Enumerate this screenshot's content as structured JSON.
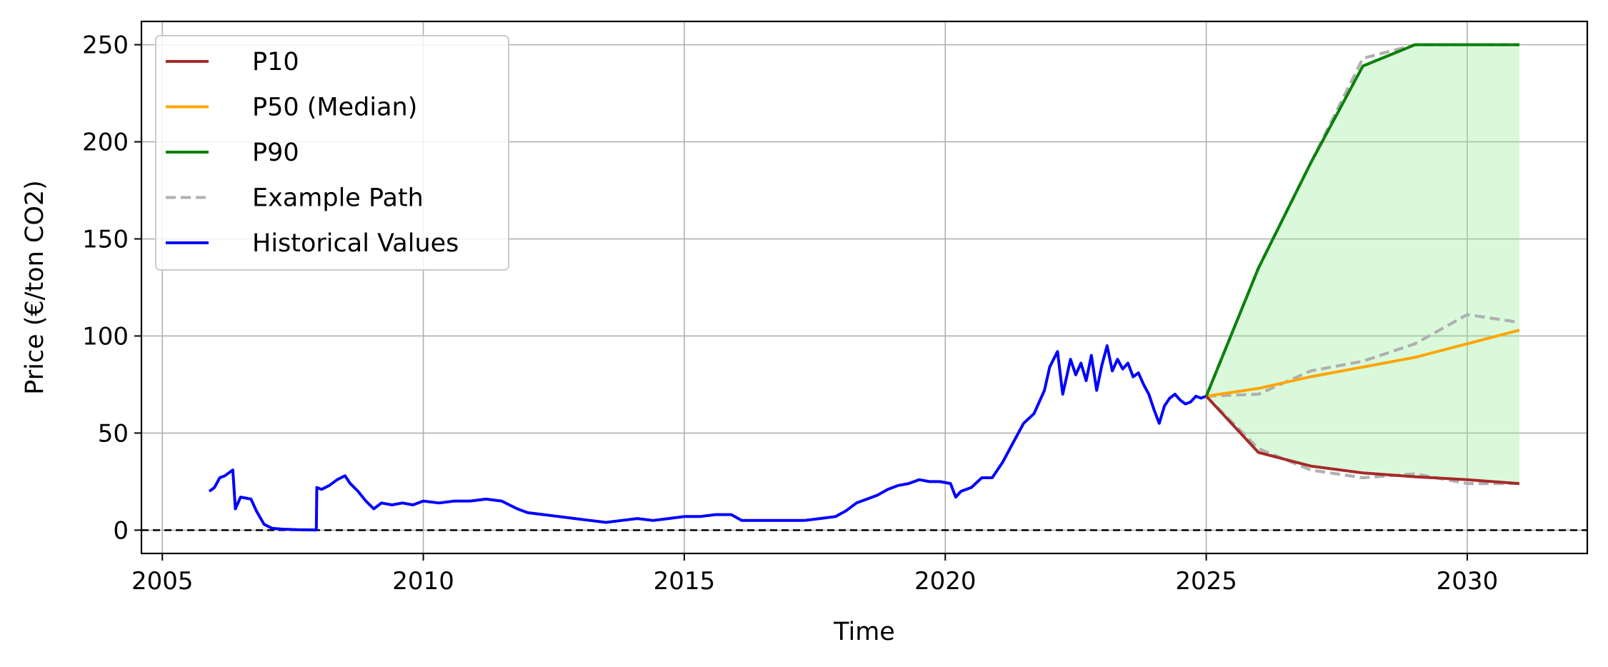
{
  "chart_data": {
    "type": "line",
    "title": "",
    "xlabel": "Time",
    "ylabel": "Price (€/ton CO2)",
    "xlim": [
      2004.6,
      2032.3
    ],
    "ylim": [
      -12,
      262
    ],
    "xticks": [
      2005,
      2010,
      2015,
      2020,
      2025,
      2030
    ],
    "yticks": [
      0,
      50,
      100,
      150,
      200,
      250
    ],
    "grid": true,
    "legend_position": "upper-left",
    "reference_line": {
      "y": 0,
      "style": "dashed",
      "color": "#000000"
    },
    "fill_between": {
      "lower": "P10",
      "upper": "P90",
      "color": "#90ee90",
      "opacity": 0.33
    },
    "series": [
      {
        "name": "P10",
        "color": "#a52a2a",
        "style": "solid",
        "x": [
          2025,
          2026,
          2027,
          2028,
          2029,
          2030,
          2031
        ],
        "y": [
          69,
          40,
          33,
          29.5,
          27.5,
          26,
          24
        ]
      },
      {
        "name": "P50 (Median)",
        "color": "#ffa500",
        "style": "solid",
        "x": [
          2025,
          2026,
          2027,
          2028,
          2029,
          2030,
          2031
        ],
        "y": [
          69,
          73,
          79,
          84,
          89,
          96,
          103
        ]
      },
      {
        "name": "P90",
        "color": "#008000",
        "style": "solid",
        "x": [
          2025,
          2026,
          2027,
          2028,
          2029,
          2030,
          2031
        ],
        "y": [
          69,
          135,
          189,
          239,
          250,
          250,
          250
        ]
      },
      {
        "name": "Example Path",
        "color": "#b0b0b0",
        "style": "dashed",
        "segments": [
          {
            "x": [
              2025,
              2026,
              2027,
              2028,
              2029,
              2030,
              2031
            ],
            "y": [
              69,
              70,
              82,
              87,
              96,
              111,
              107
            ]
          },
          {
            "x": [
              2025,
              2026,
              2027,
              2028,
              2029,
              2030,
              2031
            ],
            "y": [
              69,
              42,
              31,
              27,
              29,
              24,
              24
            ]
          },
          {
            "x": [
              2025,
              2026,
              2027,
              2028,
              2029,
              2030,
              2031
            ],
            "y": [
              69,
              135,
              189,
              243,
              250,
              250,
              250
            ]
          }
        ]
      },
      {
        "name": "Historical Values",
        "color": "#0000ff",
        "style": "solid",
        "x": [
          2005.9,
          2006.0,
          2006.1,
          2006.2,
          2006.3,
          2006.35,
          2006.4,
          2006.5,
          2006.7,
          2006.8,
          2006.95,
          2007.1,
          2007.3,
          2007.6,
          2007.95,
          2007.96,
          2008.05,
          2008.2,
          2008.35,
          2008.5,
          2008.6,
          2008.75,
          2008.9,
          2009.05,
          2009.2,
          2009.4,
          2009.6,
          2009.8,
          2010.0,
          2010.3,
          2010.6,
          2010.9,
          2011.2,
          2011.5,
          2011.8,
          2012.0,
          2012.3,
          2012.6,
          2012.9,
          2013.2,
          2013.5,
          2013.8,
          2014.1,
          2014.4,
          2014.7,
          2015.0,
          2015.3,
          2015.6,
          2015.9,
          2016.1,
          2016.4,
          2016.7,
          2017.0,
          2017.3,
          2017.6,
          2017.9,
          2018.1,
          2018.3,
          2018.5,
          2018.7,
          2018.9,
          2019.1,
          2019.3,
          2019.5,
          2019.7,
          2019.9,
          2020.1,
          2020.2,
          2020.3,
          2020.5,
          2020.7,
          2020.9,
          2021.1,
          2021.3,
          2021.5,
          2021.7,
          2021.9,
          2022.0,
          2022.15,
          2022.25,
          2022.4,
          2022.5,
          2022.6,
          2022.7,
          2022.8,
          2022.9,
          2023.0,
          2023.1,
          2023.2,
          2023.3,
          2023.4,
          2023.5,
          2023.6,
          2023.7,
          2023.8,
          2023.9,
          2024.0,
          2024.1,
          2024.2,
          2024.3,
          2024.4,
          2024.5,
          2024.6,
          2024.7,
          2024.8,
          2024.9,
          2025.0
        ],
        "y": [
          20,
          22,
          27,
          28,
          30,
          31,
          11,
          17,
          16,
          10,
          3,
          1,
          0.5,
          0.2,
          0.1,
          22,
          21,
          23,
          26,
          28,
          24,
          20,
          15,
          11,
          14,
          13,
          14,
          13,
          15,
          14,
          15,
          15,
          16,
          15,
          11,
          9,
          8,
          7,
          6,
          5,
          4,
          5,
          6,
          5,
          6,
          7,
          7,
          8,
          8,
          5,
          5,
          5,
          5,
          5,
          6,
          7,
          10,
          14,
          16,
          18,
          21,
          23,
          24,
          26,
          25,
          25,
          24,
          17,
          20,
          22,
          27,
          27,
          35,
          45,
          55,
          60,
          72,
          84,
          92,
          70,
          88,
          80,
          86,
          77,
          90,
          72,
          85,
          95,
          82,
          88,
          83,
          86,
          79,
          81,
          75,
          70,
          62,
          55,
          64,
          68,
          70,
          67,
          65,
          66,
          69,
          68,
          69
        ]
      }
    ]
  }
}
